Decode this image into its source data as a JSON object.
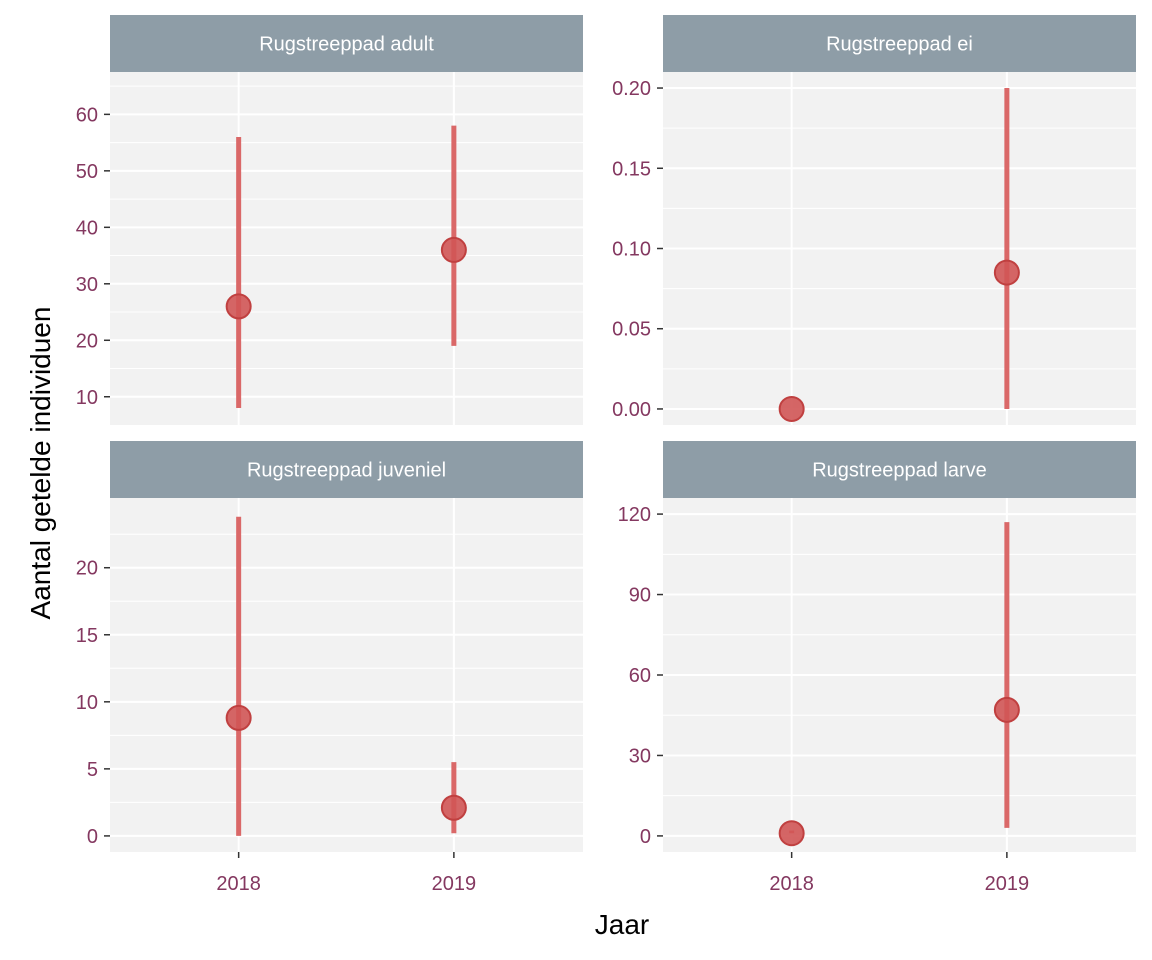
{
  "colors": {
    "panel_bg": "#F2F2F2",
    "grid": "#FFFFFF",
    "strip_bg": "#8E9DA7",
    "strip_text": "#FFFFFF",
    "tick_text": "#843860",
    "marker": "#C04040",
    "marker_fill": "#D05555",
    "line": "#D86060"
  },
  "chart_data": {
    "type": "scatter",
    "subtype": "point-range facets",
    "xlabel": "Jaar",
    "ylabel": "Aantal getelde individuen",
    "x_categories": [
      "2018",
      "2019"
    ],
    "grid": true,
    "legend": "none",
    "facets": [
      {
        "label": "Rugstreeppad adult",
        "ylim": [
          5,
          67.5
        ],
        "yticks": [
          10,
          20,
          30,
          40,
          50,
          60
        ],
        "tick_labels": [
          "10",
          "20",
          "30",
          "40",
          "50",
          "60"
        ],
        "points": [
          {
            "x": "2018",
            "y": 26,
            "lower": 8,
            "upper": 56
          },
          {
            "x": "2019",
            "y": 36,
            "lower": 19,
            "upper": 58
          }
        ]
      },
      {
        "label": "Rugstreeppad ei",
        "ylim": [
          -0.01,
          0.21
        ],
        "yticks": [
          0.0,
          0.05,
          0.1,
          0.15,
          0.2
        ],
        "tick_labels": [
          "0.00",
          "0.05",
          "0.10",
          "0.15",
          "0.20"
        ],
        "points": [
          {
            "x": "2018",
            "y": 0.0,
            "lower": 0.0,
            "upper": 0.0
          },
          {
            "x": "2019",
            "y": 0.085,
            "lower": 0.0,
            "upper": 0.2
          }
        ]
      },
      {
        "label": "Rugstreeppad juveniel",
        "ylim": [
          -1.2,
          25.2
        ],
        "yticks": [
          0,
          5,
          10,
          15,
          20
        ],
        "tick_labels": [
          "0",
          "5",
          "10",
          "15",
          "20"
        ],
        "points": [
          {
            "x": "2018",
            "y": 8.8,
            "lower": 0,
            "upper": 23.8
          },
          {
            "x": "2019",
            "y": 2.1,
            "lower": 0.2,
            "upper": 5.5
          }
        ]
      },
      {
        "label": "Rugstreeppad larve",
        "ylim": [
          -6,
          126
        ],
        "yticks": [
          0,
          30,
          60,
          90,
          120
        ],
        "tick_labels": [
          "0",
          "30",
          "60",
          "90",
          "120"
        ],
        "points": [
          {
            "x": "2018",
            "y": 1,
            "lower": 1,
            "upper": 2
          },
          {
            "x": "2019",
            "y": 47,
            "lower": 3,
            "upper": 117
          }
        ]
      }
    ]
  }
}
